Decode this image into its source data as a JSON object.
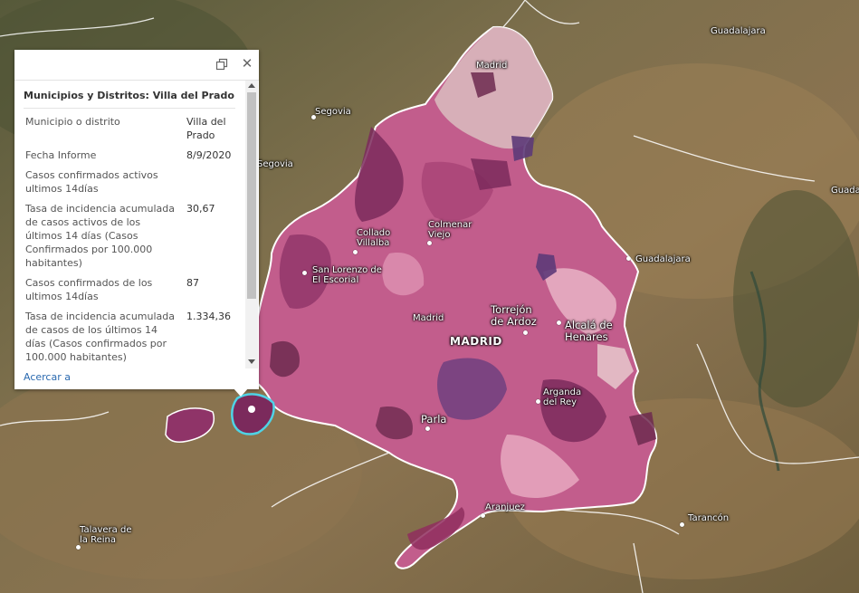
{
  "map": {
    "places": [
      {
        "id": "guadalajara-top",
        "label": "Guadalajara",
        "kind": "normal",
        "dot": false
      },
      {
        "id": "madrid-north",
        "label": "Madrid",
        "kind": "normal",
        "dot": false
      },
      {
        "id": "segovia",
        "label": "Segovia",
        "kind": "normal",
        "dot": true
      },
      {
        "id": "segovia-west",
        "label": "Segovia",
        "kind": "normal",
        "dot": false
      },
      {
        "id": "guadalajara-right",
        "label": "Guada",
        "kind": "normal",
        "dot": false
      },
      {
        "id": "collado-villalba",
        "label": "Collado\nVillalba",
        "kind": "normal",
        "dot": true
      },
      {
        "id": "colmenar-viejo",
        "label": "Colmenar\nViejo",
        "kind": "normal",
        "dot": true
      },
      {
        "id": "guadalajara-mid",
        "label": "Guadalajara",
        "kind": "normal",
        "dot": true
      },
      {
        "id": "san-lorenzo",
        "label": "San Lorenzo de\nEl Escorial",
        "kind": "normal",
        "dot": true
      },
      {
        "id": "torrejon",
        "label": "Torrejón\nde Ardoz",
        "kind": "big",
        "dot": true
      },
      {
        "id": "alcala",
        "label": "Alcalá de\nHenares",
        "kind": "big",
        "dot": true
      },
      {
        "id": "madrid-small",
        "label": "Madrid",
        "kind": "normal",
        "dot": false
      },
      {
        "id": "madrid-capital",
        "label": "MADRID",
        "kind": "cap",
        "dot": false
      },
      {
        "id": "arganda",
        "label": "Arganda\ndel Rey",
        "kind": "normal",
        "dot": true
      },
      {
        "id": "parla",
        "label": "Parla",
        "kind": "big",
        "dot": true
      },
      {
        "id": "aranjuez",
        "label": "Aranjuez",
        "kind": "normal",
        "dot": true
      },
      {
        "id": "tarancon",
        "label": "Tarancón",
        "kind": "normal",
        "dot": true
      },
      {
        "id": "talavera",
        "label": "Talavera de\nla Reina",
        "kind": "normal",
        "dot": true
      }
    ],
    "colors": {
      "choropleth_light": "#e9b3c6",
      "choropleth_mid": "#c25d8c",
      "choropleth_dark": "#7b2a5c",
      "choropleth_purple": "#6a3f7e",
      "selected_outline": "#4fd3e6",
      "boundary": "#ffffff"
    }
  },
  "popup": {
    "title": "Municipios y Distritos: Villa del Prado",
    "rows": [
      {
        "key": "Municipio o distrito",
        "value": "Villa del Prado"
      },
      {
        "key": "Fecha Informe",
        "value": "8/9/2020"
      },
      {
        "key": "Casos confirmados activos ultimos 14días",
        "value": ""
      },
      {
        "key": "Tasa de incidencia acumulada de casos activos de los últimos 14 días (Casos Confirmados por 100.000 habitantes)",
        "value": "30,67"
      },
      {
        "key": "Casos confirmados de los ultimos 14días",
        "value": "87"
      },
      {
        "key": "Tasa de incidencia acumulada de casos de los últimos 14 días (Casos confirmados por 100.000 habitantes)",
        "value": "1.334,36"
      }
    ],
    "zoom_label": "Acercar a",
    "close_glyph": "✕",
    "maximize_icon": "maximize-icon",
    "close_icon": "close-icon"
  }
}
